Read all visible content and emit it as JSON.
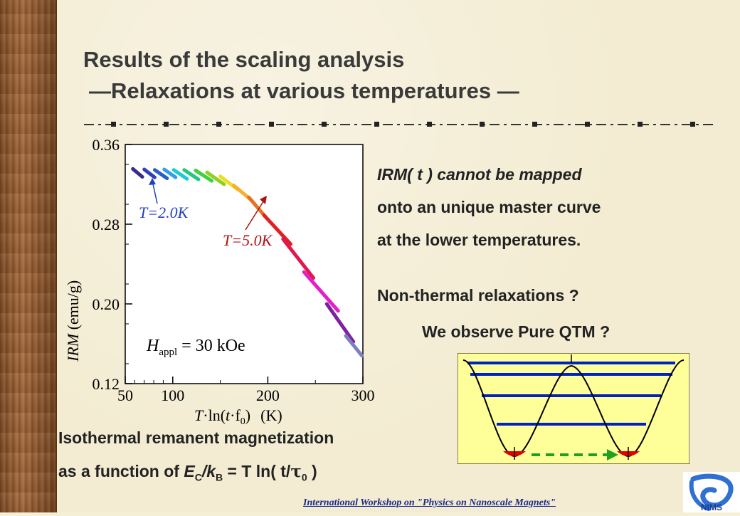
{
  "slide": {
    "title_line1": "Results of the scaling analysis",
    "title_line2": "—Relaxations at various temperatures  —",
    "right_text": [
      "IRM( t ) cannot be mapped",
      "onto an unique master curve",
      "at the lower temperatures."
    ],
    "question1": "Non-thermal relaxations ?",
    "question2": "We observe Pure QTM ?",
    "caption_line1": "Isothermal remanent magnetization",
    "caption_line2_prefix": "as a function of ",
    "caption_E": "E",
    "caption_C": "C",
    "caption_k": "/k",
    "caption_B": "B",
    "caption_eq": " = T ln( t/",
    "caption_tau": "τ",
    "caption_0": "0",
    "caption_end": " )",
    "footer": "International Workshop on \"Physics on Nanoscale Magnets\"",
    "logo_text": "NIMS"
  },
  "chart_data": {
    "type": "scatter",
    "xlabel_T": "T",
    "xlabel_ln": "·ln(",
    "xlabel_t": "t",
    "xlabel_f": "·f",
    "xlabel_0": "0",
    "xlabel_paren": ")",
    "xlabel_unit": "(K)",
    "ylabel_italic": "IRM",
    "ylabel_unit": " (emu/g)",
    "xlim": [
      50,
      300
    ],
    "ylim": [
      0.12,
      0.36
    ],
    "xticks": [
      "50",
      "100",
      "200",
      "300"
    ],
    "yticks": [
      "0.12",
      "0.20",
      "0.28",
      "0.36"
    ],
    "annotation_low": "T=2.0K",
    "annotation_high": "T=5.0K",
    "field_H": "H",
    "field_sub": "appl",
    "field_value": " = 30 kOe",
    "series": [
      {
        "color": "#3a2a8a",
        "x": [
          58,
          68
        ],
        "y": [
          0.3355,
          0.3275
        ]
      },
      {
        "color": "#3040b0",
        "x": [
          70,
          81
        ],
        "y": [
          0.335,
          0.327
        ]
      },
      {
        "color": "#2860c8",
        "x": [
          81,
          94
        ],
        "y": [
          0.3345,
          0.326
        ]
      },
      {
        "color": "#30a0e0",
        "x": [
          91,
          103
        ],
        "y": [
          0.335,
          0.327
        ]
      },
      {
        "color": "#20c8d8",
        "x": [
          101,
          115
        ],
        "y": [
          0.3345,
          0.3255
        ]
      },
      {
        "color": "#20c880",
        "x": [
          112,
          127
        ],
        "y": [
          0.3345,
          0.325
        ]
      },
      {
        "color": "#40d040",
        "x": [
          124,
          141
        ],
        "y": [
          0.334,
          0.3235
        ]
      },
      {
        "color": "#90d020",
        "x": [
          136,
          154
        ],
        "y": [
          0.332,
          0.32
        ]
      },
      {
        "color": "#e8e020",
        "x": [
          150,
          168
        ],
        "y": [
          0.328,
          0.315
        ]
      },
      {
        "color": "#f8b030",
        "x": [
          164,
          183
        ],
        "y": [
          0.319,
          0.304
        ]
      },
      {
        "color": "#e87020",
        "x": [
          180,
          197
        ],
        "y": [
          0.307,
          0.288
        ]
      },
      {
        "color": "#e02020",
        "x": [
          196,
          224
        ],
        "y": [
          0.289,
          0.26
        ]
      },
      {
        "color": "#e01850",
        "x": [
          216,
          248
        ],
        "y": [
          0.265,
          0.226
        ]
      },
      {
        "color": "#e020c8",
        "x": [
          238,
          274
        ],
        "y": [
          0.232,
          0.193
        ]
      },
      {
        "color": "#8020a0",
        "x": [
          262,
          290
        ],
        "y": [
          0.2,
          0.162
        ]
      },
      {
        "color": "#7a80c0",
        "x": [
          282,
          299
        ],
        "y": [
          0.168,
          0.148
        ]
      }
    ]
  },
  "diagram": {
    "arrow_color": "#20a020",
    "well_fill": "#ffff99",
    "level_color": "#0020c8",
    "ground_color": "#e00000"
  }
}
